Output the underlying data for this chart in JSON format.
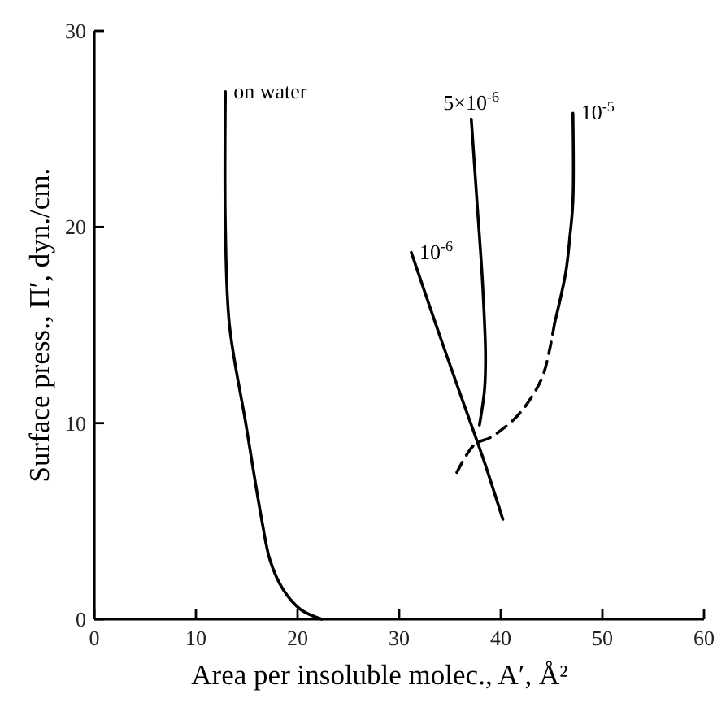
{
  "chart_data": {
    "type": "line",
    "xlabel": "Area per insoluble molec., A′, Å²",
    "ylabel": "Surface press., Π′, dyn./cm.",
    "xlim": [
      0,
      60
    ],
    "xticks": [
      0,
      10,
      20,
      30,
      40,
      50,
      60
    ],
    "ylim": [
      0,
      30
    ],
    "yticks": [
      0,
      10,
      20,
      30
    ],
    "grid": false,
    "marker": "none",
    "line_style": "solid",
    "series": [
      {
        "name": "on water",
        "color": "#000000",
        "x": [
          12.9,
          12.9,
          13.3,
          14.9,
          16.5,
          17.3,
          18.6,
          20.3,
          22.4
        ],
        "values": [
          26.9,
          20,
          15,
          10,
          5,
          3,
          1.5,
          0.5,
          0
        ]
      },
      {
        "name": "10$^{-6}$",
        "color": "#000000",
        "x": [
          31.2,
          33.5,
          36,
          38.2,
          40.2
        ],
        "values": [
          18.7,
          15.2,
          11.5,
          8.3,
          5.1
        ]
      },
      {
        "name": "5×10$^{-6}$",
        "color": "#000000",
        "x": [
          37.1,
          37.7,
          38.2,
          38.5,
          38.4,
          37.9
        ],
        "values": [
          25.5,
          21,
          17.2,
          13.5,
          11.7,
          9.9
        ]
      },
      {
        "name": "10$^{-5}$",
        "color": "#000000",
        "x": [
          47.1,
          47.1,
          46.8,
          46.4,
          45.3
        ],
        "values": [
          25.8,
          21.3,
          19.5,
          17.7,
          15.1
        ]
      },
      {
        "color": "#000000",
        "line_style": "dashed",
        "x": [
          45.3,
          44.2,
          43,
          41.5,
          39.1,
          37.4,
          35.5
        ],
        "values": [
          15.1,
          12.5,
          11.3,
          10.3,
          9.3,
          8.9,
          7.3
        ]
      }
    ]
  }
}
